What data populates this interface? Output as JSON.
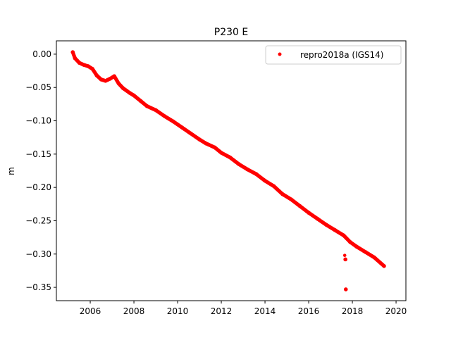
{
  "chart_data": {
    "type": "scatter",
    "title": "P230 E",
    "xlabel": "",
    "ylabel": "m",
    "xlim": [
      2004.45,
      2020.45
    ],
    "ylim": [
      -0.37,
      0.02
    ],
    "xticks": [
      2006,
      2008,
      2010,
      2012,
      2014,
      2016,
      2018,
      2020
    ],
    "xtick_labels": [
      "2006",
      "2008",
      "2010",
      "2012",
      "2014",
      "2016",
      "2018",
      "2020"
    ],
    "yticks": [
      0.0,
      -0.05,
      -0.1,
      -0.15,
      -0.2,
      -0.25,
      -0.3,
      -0.35
    ],
    "ytick_labels": [
      "0.00",
      "−0.05",
      "−0.10",
      "−0.15",
      "−0.20",
      "−0.25",
      "−0.30",
      "−0.35"
    ],
    "grid": false,
    "legend_position": "top-right",
    "series": [
      {
        "name": "repro2018a (IGS14)",
        "color": "#ff0000",
        "marker": "dot",
        "x": [
          2005.2,
          2005.3,
          2005.5,
          2005.7,
          2005.9,
          2006.1,
          2006.3,
          2006.5,
          2006.7,
          2006.9,
          2007.1,
          2007.3,
          2007.5,
          2007.8,
          2008.0,
          2008.3,
          2008.6,
          2009.0,
          2009.4,
          2009.8,
          2010.2,
          2010.6,
          2011.0,
          2011.3,
          2011.7,
          2012.0,
          2012.4,
          2012.8,
          2013.2,
          2013.6,
          2014.0,
          2014.4,
          2014.8,
          2015.2,
          2015.6,
          2016.0,
          2016.4,
          2016.8,
          2017.2,
          2017.6,
          2017.9,
          2018.2,
          2018.6,
          2019.0,
          2019.45,
          2017.65,
          2017.68,
          2017.7
        ],
        "y": [
          0.003,
          -0.006,
          -0.013,
          -0.016,
          -0.018,
          -0.022,
          -0.032,
          -0.038,
          -0.04,
          -0.037,
          -0.033,
          -0.044,
          -0.051,
          -0.058,
          -0.062,
          -0.07,
          -0.078,
          -0.084,
          -0.093,
          -0.101,
          -0.11,
          -0.119,
          -0.128,
          -0.134,
          -0.14,
          -0.148,
          -0.155,
          -0.165,
          -0.173,
          -0.18,
          -0.19,
          -0.198,
          -0.21,
          -0.218,
          -0.228,
          -0.238,
          -0.247,
          -0.256,
          -0.264,
          -0.272,
          -0.282,
          -0.289,
          -0.297,
          -0.305,
          -0.318,
          -0.302,
          -0.308,
          -0.353
        ]
      }
    ]
  }
}
